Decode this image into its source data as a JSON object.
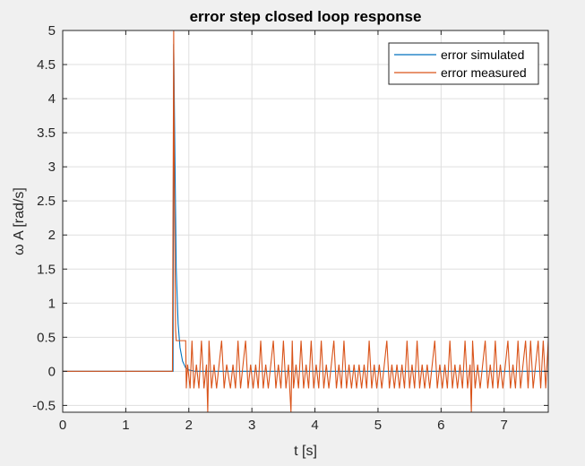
{
  "chart_data": {
    "type": "line",
    "title": "error step closed loop response",
    "xlabel": "t [s]",
    "ylabel": "ω A [rad/s]",
    "xlim": [
      0,
      7.7
    ],
    "ylim": [
      -0.6,
      5
    ],
    "xticks": [
      0,
      1,
      2,
      3,
      4,
      5,
      6,
      7
    ],
    "xtick_labels": [
      "0",
      "1",
      "2",
      "3",
      "4",
      "5",
      "6",
      "7"
    ],
    "yticks": [
      -0.5,
      0,
      0.5,
      1,
      1.5,
      2,
      2.5,
      3,
      3.5,
      4,
      4.5,
      5
    ],
    "ytick_labels": [
      "-0.5",
      "0",
      "0.5",
      "1",
      "1.5",
      "2",
      "2.5",
      "3",
      "3.5",
      "4",
      "4.5",
      "5"
    ],
    "grid": true,
    "legend_position": "top-right",
    "series": [
      {
        "name": "error simulated",
        "color": "#0072bd",
        "x": [
          0,
          1.75,
          1.76,
          1.78,
          1.8,
          1.83,
          1.86,
          1.9,
          1.95,
          2.0,
          2.1,
          2.5,
          7.7
        ],
        "y": [
          0,
          0,
          4.8,
          3.1,
          1.5,
          0.7,
          0.35,
          0.15,
          0.05,
          0.02,
          0.0,
          0.0,
          0.0
        ]
      },
      {
        "name": "error measured",
        "color": "#d95319",
        "x": [
          0,
          1.74,
          1.76,
          1.77,
          1.78,
          1.79,
          1.8,
          1.82,
          1.84,
          1.86,
          1.88,
          1.95,
          1.96,
          1.98,
          2.02,
          2.05,
          2.08,
          2.12,
          2.16,
          2.2,
          2.24,
          2.28,
          2.3,
          2.32,
          2.36,
          2.4,
          2.44,
          2.48,
          2.52,
          2.56,
          2.6,
          2.66,
          2.7,
          2.74,
          2.78,
          2.82,
          2.86,
          2.9,
          2.94,
          2.98,
          3.02,
          3.06,
          3.1,
          3.14,
          3.18,
          3.22,
          3.26,
          3.3,
          3.34,
          3.38,
          3.42,
          3.46,
          3.5,
          3.54,
          3.58,
          3.62,
          3.64,
          3.66,
          3.7,
          3.74,
          3.78,
          3.82,
          3.86,
          3.9,
          3.94,
          3.98,
          4.02,
          4.06,
          4.1,
          4.14,
          4.18,
          4.22,
          4.26,
          4.3,
          4.34,
          4.38,
          4.42,
          4.46,
          4.5,
          4.54,
          4.58,
          4.62,
          4.66,
          4.7,
          4.74,
          4.78,
          4.82,
          4.86,
          4.9,
          4.94,
          4.98,
          5.02,
          5.06,
          5.1,
          5.14,
          5.18,
          5.22,
          5.26,
          5.3,
          5.34,
          5.38,
          5.42,
          5.46,
          5.5,
          5.54,
          5.58,
          5.62,
          5.66,
          5.7,
          5.74,
          5.78,
          5.82,
          5.86,
          5.9,
          5.94,
          5.98,
          6.02,
          6.06,
          6.1,
          6.14,
          6.18,
          6.22,
          6.26,
          6.3,
          6.34,
          6.38,
          6.42,
          6.46,
          6.48,
          6.5,
          6.54,
          6.58,
          6.62,
          6.66,
          6.7,
          6.74,
          6.78,
          6.82,
          6.86,
          6.9,
          6.94,
          6.98,
          7.02,
          7.06,
          7.1,
          7.14,
          7.18,
          7.22,
          7.26,
          7.3,
          7.34,
          7.38,
          7.42,
          7.46,
          7.5,
          7.54,
          7.58,
          7.62,
          7.66,
          7.7
        ],
        "y": [
          0,
          0,
          5.0,
          2.6,
          1.5,
          0.6,
          0.45,
          0.45,
          0.45,
          0.45,
          0.45,
          0.45,
          -0.25,
          0.1,
          -0.25,
          0.45,
          -0.25,
          0.1,
          -0.25,
          0.45,
          -0.25,
          0.1,
          -0.6,
          0.45,
          -0.25,
          0.1,
          -0.25,
          0.1,
          0.45,
          -0.25,
          0.1,
          -0.25,
          0.1,
          -0.25,
          0.45,
          -0.25,
          0.1,
          0.45,
          -0.25,
          0.1,
          -0.25,
          0.1,
          -0.25,
          0.45,
          -0.25,
          0.1,
          -0.25,
          0.1,
          0.45,
          -0.25,
          0.1,
          -0.25,
          0.45,
          -0.25,
          0.1,
          -0.6,
          0.45,
          -0.25,
          0.1,
          -0.25,
          0.45,
          -0.25,
          0.1,
          -0.25,
          0.45,
          -0.25,
          0.1,
          -0.25,
          0.45,
          -0.25,
          0.1,
          -0.25,
          0.1,
          0.45,
          -0.25,
          0.1,
          -0.25,
          0.45,
          -0.25,
          0.1,
          -0.25,
          0.1,
          -0.25,
          0.1,
          -0.25,
          0.1,
          -0.25,
          0.45,
          -0.25,
          0.1,
          -0.25,
          0.1,
          -0.25,
          0.1,
          0.45,
          -0.25,
          0.1,
          -0.25,
          0.1,
          -0.25,
          0.1,
          -0.25,
          0.45,
          -0.25,
          0.1,
          -0.25,
          0.45,
          -0.25,
          0.1,
          -0.25,
          0.1,
          -0.25,
          0.1,
          0.45,
          -0.25,
          0.1,
          -0.25,
          0.1,
          -0.25,
          0.45,
          -0.25,
          0.1,
          -0.25,
          0.1,
          -0.25,
          0.45,
          -0.25,
          0.1,
          -0.6,
          0.45,
          -0.25,
          0.1,
          -0.25,
          0.1,
          0.45,
          -0.25,
          0.1,
          -0.25,
          0.45,
          -0.25,
          0.1,
          -0.25,
          0.1,
          0.45,
          -0.25,
          0.1,
          -0.25,
          0.45,
          -0.25,
          0.1,
          0.45,
          -0.25,
          0.45,
          -0.25,
          0.1,
          0.45,
          -0.25,
          0.45,
          -0.25,
          0.45
        ]
      }
    ]
  }
}
